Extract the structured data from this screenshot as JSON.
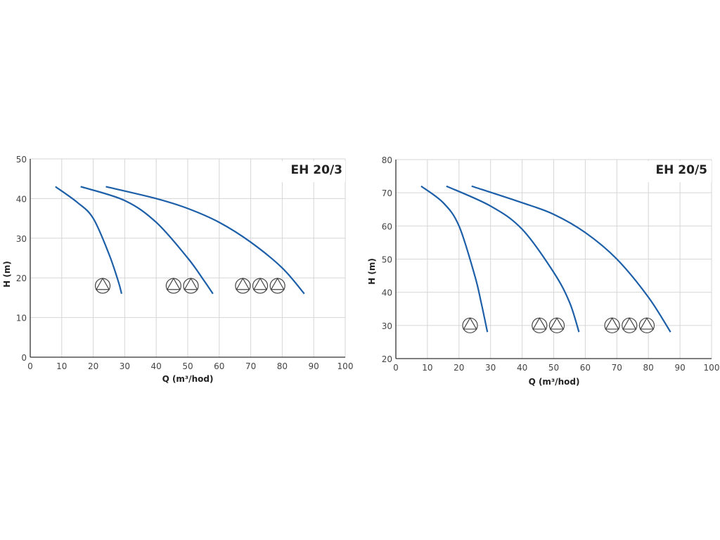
{
  "colors": {
    "curve": "#1d5fa8",
    "grid": "#d6d6d6",
    "axis": "#333333",
    "symbol": "#444444"
  },
  "chart_data": [
    {
      "type": "line",
      "title": "EH 20/3",
      "xlabel": "Q (m³/hod)",
      "ylabel": "H (m)",
      "xlim": [
        0,
        100
      ],
      "ylim": [
        0,
        50
      ],
      "xticks": [
        "0",
        "10",
        "20",
        "30",
        "40",
        "50",
        "60",
        "70",
        "80",
        "90",
        "100"
      ],
      "yticks": [
        "0",
        "10",
        "20",
        "30",
        "40",
        "50"
      ],
      "grid": true,
      "series": [
        {
          "name": "1 pump",
          "pumps": 1,
          "x": [
            8,
            15,
            20,
            25,
            28,
            29
          ],
          "y": [
            43,
            39,
            35,
            26,
            19,
            16
          ]
        },
        {
          "name": "2 pumps",
          "pumps": 2,
          "x": [
            16,
            30,
            40,
            50,
            55,
            58
          ],
          "y": [
            43,
            39.5,
            34,
            25,
            19.5,
            16
          ]
        },
        {
          "name": "3 pumps",
          "pumps": 3,
          "x": [
            24,
            40,
            50,
            60,
            70,
            80,
            87
          ],
          "y": [
            43,
            40,
            37.5,
            34,
            29,
            22.5,
            16
          ]
        }
      ],
      "pump_symbols": [
        {
          "x": 23,
          "y": 18
        },
        {
          "x": 45.5,
          "y": 18
        },
        {
          "x": 51,
          "y": 18
        },
        {
          "x": 67.5,
          "y": 18
        },
        {
          "x": 73,
          "y": 18
        },
        {
          "x": 78.5,
          "y": 18
        }
      ]
    },
    {
      "type": "line",
      "title": "EH 20/5",
      "xlabel": "Q (m³/hod)",
      "ylabel": "H (m)",
      "xlim": [
        0,
        100
      ],
      "ylim": [
        20,
        80
      ],
      "xticks": [
        "0",
        "10",
        "20",
        "30",
        "40",
        "50",
        "60",
        "70",
        "80",
        "90",
        "100"
      ],
      "yticks": [
        "20",
        "30",
        "40",
        "50",
        "60",
        "70",
        "80"
      ],
      "grid": true,
      "series": [
        {
          "name": "1 pump",
          "pumps": 1,
          "x": [
            8,
            15,
            20,
            25,
            27,
            29
          ],
          "y": [
            72,
            67,
            60,
            45,
            37,
            28
          ]
        },
        {
          "name": "2 pumps",
          "pumps": 2,
          "x": [
            16,
            30,
            40,
            50,
            55,
            58
          ],
          "y": [
            72,
            66,
            59,
            46,
            37,
            28
          ]
        },
        {
          "name": "3 pumps",
          "pumps": 3,
          "x": [
            24,
            40,
            50,
            60,
            70,
            80,
            87
          ],
          "y": [
            72,
            67,
            63.5,
            58,
            50,
            38.5,
            28
          ]
        }
      ],
      "pump_symbols": [
        {
          "x": 23.5,
          "y": 30
        },
        {
          "x": 45.5,
          "y": 30
        },
        {
          "x": 51,
          "y": 30
        },
        {
          "x": 68.5,
          "y": 30
        },
        {
          "x": 74,
          "y": 30
        },
        {
          "x": 79.5,
          "y": 30
        }
      ]
    }
  ]
}
